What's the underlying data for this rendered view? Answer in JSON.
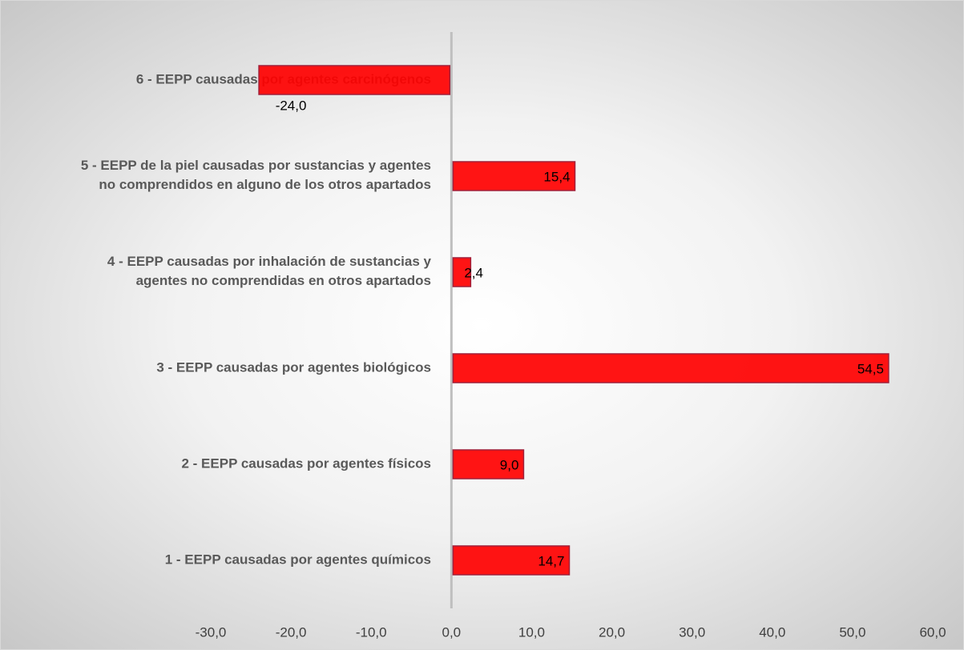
{
  "chart_data": {
    "type": "barh",
    "categories": [
      "1 - EEPP causadas por agentes químicos",
      "2 - EEPP causadas por agentes físicos",
      "3 - EEPP causadas por agentes biológicos",
      "4 - EEPP causadas por inhalación de sustancias y\nagentes no comprendidas en otros apartados",
      "5 - EEPP de la piel causadas por sustancias y agentes\nno comprendidos en alguno de los otros apartados",
      "6 - EEPP causadas por agentes carcinógenos"
    ],
    "values": [
      14.7,
      9.0,
      54.5,
      2.4,
      15.4,
      -24.0
    ],
    "value_labels": [
      "14,7",
      "9,0",
      "54,5",
      "2,4",
      "15,4",
      "-24,0"
    ],
    "color": "#ff0000",
    "xlim": [
      -30,
      60
    ],
    "xticks": [
      {
        "value": -30,
        "label": "-30,0"
      },
      {
        "value": -20,
        "label": "-20,0"
      },
      {
        "value": -10,
        "label": "-10,0"
      },
      {
        "value": 0,
        "label": "0,0"
      },
      {
        "value": 10,
        "label": "10,0"
      },
      {
        "value": 20,
        "label": "20,0"
      },
      {
        "value": 30,
        "label": "30,0"
      },
      {
        "value": 40,
        "label": "40,0"
      },
      {
        "value": 50,
        "label": "50,0"
      },
      {
        "value": 60,
        "label": "60,0"
      }
    ]
  }
}
